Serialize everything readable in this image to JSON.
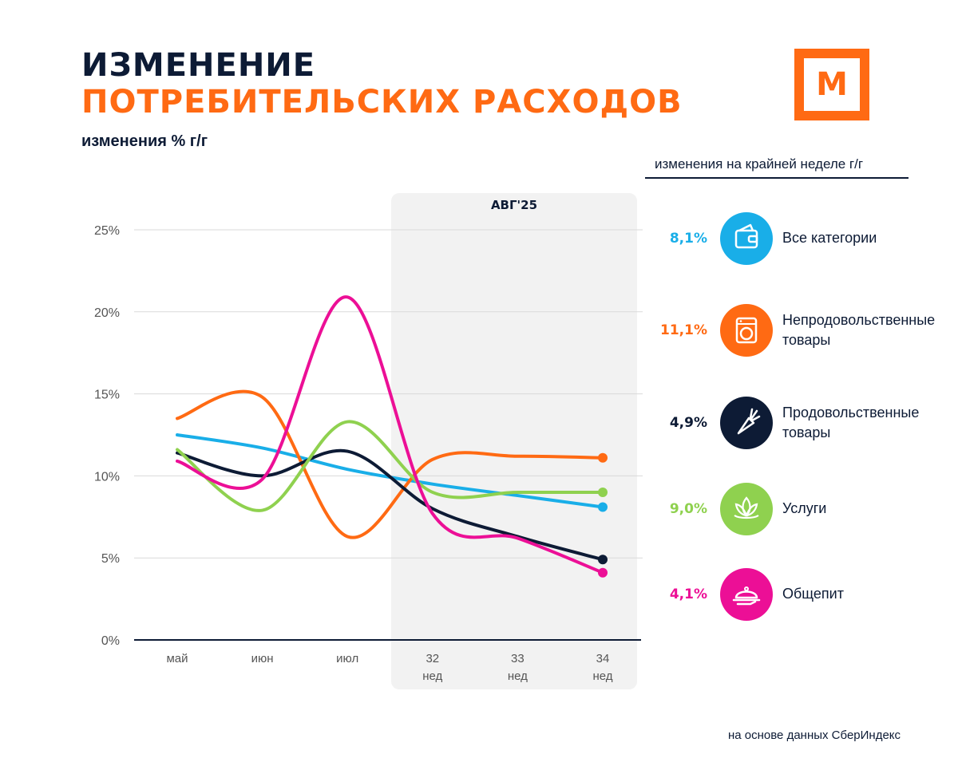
{
  "header": {
    "title_line1": "ИЗМЕНЕНИЕ",
    "title_line2": "ПОТРЕБИТЕЛЬСКИХ РАСХОДОВ",
    "subtitle": "изменения % г/г",
    "logo_letter": "М"
  },
  "colors": {
    "navy": "#0d1b35",
    "orange": "#ff6a13",
    "blue": "#19aee8",
    "green": "#8fd14f",
    "pink": "#ec0f96",
    "shade": "#f2f2f2",
    "grid": "#d9d9d9"
  },
  "legend": {
    "title": "изменения на крайней неделе г/г",
    "items": [
      {
        "value": "8,1%",
        "label": "Все категории",
        "icon": "wallet-icon",
        "color": "#19aee8"
      },
      {
        "value": "11,1%",
        "label": "Непродовольственные товары",
        "icon": "washing-machine-icon",
        "color": "#ff6a13"
      },
      {
        "value": "4,9%",
        "label": "Продовольственные товары",
        "icon": "carrot-icon",
        "color": "#0d1b35"
      },
      {
        "value": "9,0%",
        "label": "Услуги",
        "icon": "lotus-icon",
        "color": "#8fd14f"
      },
      {
        "value": "4,1%",
        "label": "Общепит",
        "icon": "cloche-icon",
        "color": "#ec0f96"
      }
    ]
  },
  "source": "на основе данных СберИндекс",
  "chart_data": {
    "type": "line",
    "title": "",
    "xlabel": "",
    "ylabel": "",
    "ylim": [
      0,
      25
    ],
    "y_ticks": [
      0,
      5,
      10,
      15,
      20,
      25
    ],
    "y_tick_labels": [
      "0%",
      "5%",
      "10%",
      "15%",
      "20%",
      "25%"
    ],
    "categories": [
      "май",
      "июн",
      "июл",
      "32",
      "33",
      "34"
    ],
    "category_sublabels": [
      "",
      "",
      "",
      "нед",
      "нед",
      "нед"
    ],
    "highlight": {
      "label": "АВГ'25",
      "from_index": 3,
      "to_index": 5
    },
    "series": [
      {
        "name": "Все категории",
        "color": "#19aee8",
        "values": [
          12.5,
          11.7,
          10.4,
          9.5,
          8.8,
          8.1
        ]
      },
      {
        "name": "Непродовольственные товары",
        "color": "#ff6a13",
        "values": [
          13.5,
          14.8,
          6.3,
          11.0,
          11.2,
          11.1
        ]
      },
      {
        "name": "Продовольственные товары",
        "color": "#0d1b35",
        "values": [
          11.4,
          10.0,
          11.5,
          8.0,
          6.3,
          4.9
        ]
      },
      {
        "name": "Услуги",
        "color": "#8fd14f",
        "values": [
          11.6,
          7.9,
          13.3,
          9.0,
          9.0,
          9.0
        ]
      },
      {
        "name": "Общепит",
        "color": "#ec0f96",
        "values": [
          10.9,
          9.8,
          20.9,
          7.7,
          6.2,
          4.1
        ]
      }
    ]
  }
}
